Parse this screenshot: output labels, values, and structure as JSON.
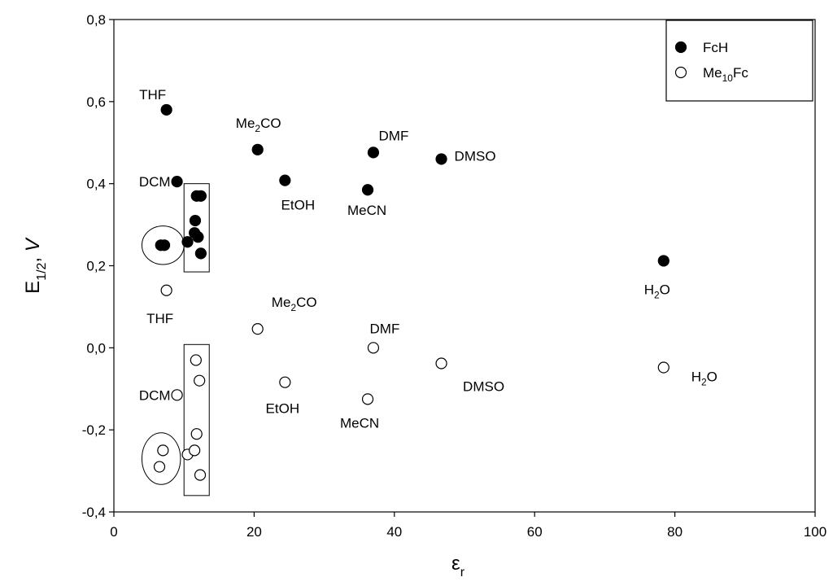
{
  "chart_data": {
    "type": "scatter",
    "xlabel": "ε",
    "xlabel_sub": "r",
    "ylabel": {
      "base": "E",
      "sub": "1/2",
      "sep": ", ",
      "unit": "V"
    },
    "xlim": [
      0,
      100
    ],
    "ylim": [
      -0.4,
      0.8
    ],
    "x_ticks": [
      {
        "value": 0,
        "label": "0"
      },
      {
        "value": 20,
        "label": "20"
      },
      {
        "value": 40,
        "label": "40"
      },
      {
        "value": 60,
        "label": "60"
      },
      {
        "value": 80,
        "label": "80"
      },
      {
        "value": 100,
        "label": "100"
      }
    ],
    "y_ticks": [
      {
        "value": -0.4,
        "label": "-0,4"
      },
      {
        "value": -0.2,
        "label": "-0,2"
      },
      {
        "value": 0.0,
        "label": "0,0"
      },
      {
        "value": 0.2,
        "label": "0,2"
      },
      {
        "value": 0.4,
        "label": "0,4"
      },
      {
        "value": 0.6,
        "label": "0,6"
      },
      {
        "value": 0.8,
        "label": "0,8"
      }
    ],
    "grid": false,
    "legend_position": "top-right",
    "series": [
      {
        "name": "FcH",
        "marker": "filled-circle",
        "points": [
          {
            "x": 7.5,
            "y": 0.58
          },
          {
            "x": 9.0,
            "y": 0.405
          },
          {
            "x": 20.5,
            "y": 0.483
          },
          {
            "x": 24.4,
            "y": 0.408
          },
          {
            "x": 36.2,
            "y": 0.385
          },
          {
            "x": 37.0,
            "y": 0.476
          },
          {
            "x": 46.7,
            "y": 0.46
          },
          {
            "x": 78.4,
            "y": 0.212
          },
          {
            "x": 6.7,
            "y": 0.25
          },
          {
            "x": 7.2,
            "y": 0.25
          },
          {
            "x": 10.5,
            "y": 0.258
          },
          {
            "x": 11.5,
            "y": 0.28
          },
          {
            "x": 11.6,
            "y": 0.31
          },
          {
            "x": 11.8,
            "y": 0.37
          },
          {
            "x": 12.0,
            "y": 0.27
          },
          {
            "x": 12.4,
            "y": 0.37
          },
          {
            "x": 12.4,
            "y": 0.23
          }
        ]
      },
      {
        "name": "Me10Fc",
        "legend_text": {
          "base": "Me",
          "sub": "10",
          "rest": "Fc"
        },
        "marker": "open-circle",
        "points": [
          {
            "x": 7.5,
            "y": 0.14
          },
          {
            "x": 9.0,
            "y": -0.115
          },
          {
            "x": 20.5,
            "y": 0.046
          },
          {
            "x": 24.4,
            "y": -0.084
          },
          {
            "x": 36.2,
            "y": -0.125
          },
          {
            "x": 37.0,
            "y": 0.0
          },
          {
            "x": 46.7,
            "y": -0.038
          },
          {
            "x": 78.4,
            "y": -0.048
          },
          {
            "x": 7.0,
            "y": -0.25
          },
          {
            "x": 6.5,
            "y": -0.29
          },
          {
            "x": 10.5,
            "y": -0.26
          },
          {
            "x": 11.5,
            "y": -0.25
          },
          {
            "x": 11.7,
            "y": -0.03
          },
          {
            "x": 11.8,
            "y": -0.21
          },
          {
            "x": 12.2,
            "y": -0.08
          },
          {
            "x": 12.3,
            "y": -0.31
          }
        ]
      }
    ],
    "annotations": [
      {
        "base": "THF",
        "x": 7.5,
        "y": 0.58
      },
      {
        "base": "DCM",
        "x": 9.0,
        "y": 0.405
      },
      {
        "base": "Me",
        "sub": "2",
        "rest": "CO",
        "x": 20.5,
        "y": 0.483
      },
      {
        "base": "EtOH",
        "x": 24.4,
        "y": 0.408
      },
      {
        "base": "MeCN",
        "x": 36.2,
        "y": 0.385
      },
      {
        "base": "DMF",
        "x": 37.0,
        "y": 0.476
      },
      {
        "base": "DMSO",
        "x": 46.7,
        "y": 0.46
      },
      {
        "base": "H",
        "sub": "2",
        "rest": "O",
        "x": 78.4,
        "y": 0.212
      },
      {
        "base": "THF",
        "x": 7.5,
        "y": 0.14
      },
      {
        "base": "DCM",
        "x": 9.0,
        "y": -0.115
      },
      {
        "base": "Me",
        "sub": "2",
        "rest": "CO",
        "x": 20.5,
        "y": 0.046
      },
      {
        "base": "EtOH",
        "x": 24.4,
        "y": -0.084
      },
      {
        "base": "MeCN",
        "x": 36.2,
        "y": -0.125
      },
      {
        "base": "DMF",
        "x": 37.0,
        "y": 0.0
      },
      {
        "base": "DMSO",
        "x": 46.7,
        "y": -0.038
      },
      {
        "base": "H",
        "sub": "2",
        "rest": "O",
        "x": 78.4,
        "y": -0.048
      }
    ],
    "group_shapes": [
      {
        "shape": "ellipse",
        "x_range": [
          4.0,
          10.0
        ],
        "y_range": [
          0.203,
          0.297
        ]
      },
      {
        "shape": "rectangle",
        "x_range": [
          10.0,
          13.6
        ],
        "y_range": [
          0.185,
          0.4
        ]
      },
      {
        "shape": "ellipse",
        "x_range": [
          4.0,
          9.5
        ],
        "y_range": [
          -0.333,
          -0.207
        ]
      },
      {
        "shape": "rectangle",
        "x_range": [
          10.0,
          13.6
        ],
        "y_range": [
          -0.36,
          0.008
        ]
      }
    ]
  }
}
